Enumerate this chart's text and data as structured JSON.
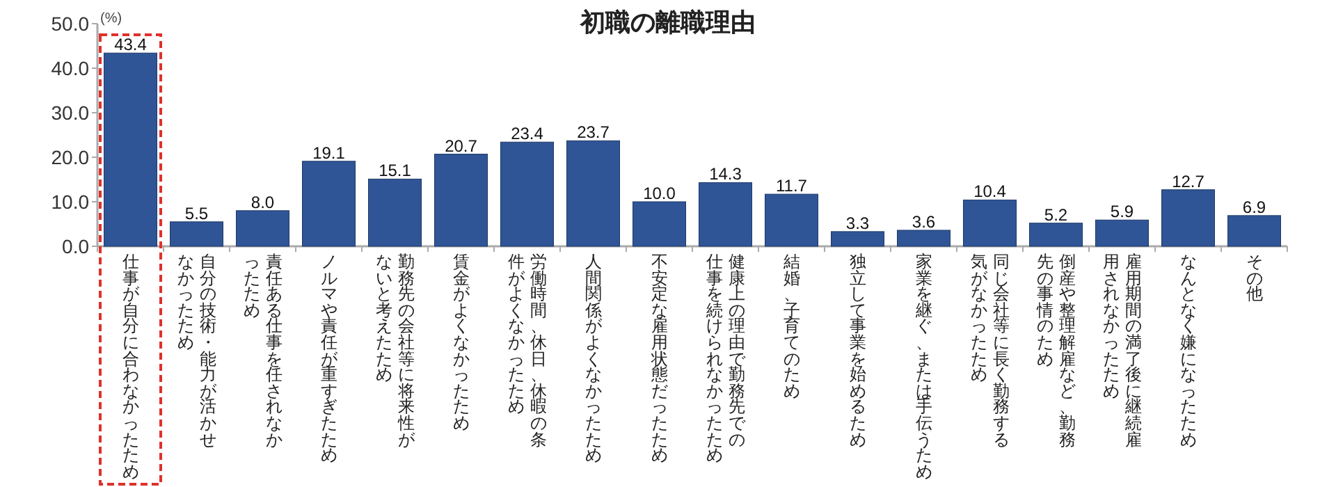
{
  "chart_data": {
    "type": "bar",
    "title": "初職の離職理由",
    "ylabel": "(%)",
    "categories": [
      "仕事が自分に合わなかったため",
      "自分の技術・能力が活かせなかったため",
      "責任ある仕事を任されなかったため",
      "ノルマや責任が重すぎたため",
      "勤務先の会社等に将来性がないと考えたため",
      "賃金がよくなかったため",
      "労働時間、休日、休暇の条件がよくなかったため",
      "人間関係がよくなかったため",
      "不安定な雇用状態だったため",
      "健康上の理由で勤務先での仕事を続けられなかったため",
      "結婚、子育てのため",
      "独立して事業を始めるため",
      "家業を継ぐ、または手伝うため",
      "同じ会社等に長く勤務する気がなかったため",
      "倒産や整理解雇など、勤務先の事情のため",
      "雇用期間の満了後に継続雇用されなかったため",
      "なんとなく嫌になったため",
      "その他"
    ],
    "values": [
      43.4,
      5.5,
      8.0,
      19.1,
      15.1,
      20.7,
      23.4,
      23.7,
      10.0,
      14.3,
      11.7,
      3.3,
      3.6,
      10.4,
      5.2,
      5.9,
      12.7,
      6.9
    ],
    "value_labels": [
      "43.4",
      "5.5",
      "8.0",
      "19.1",
      "15.1",
      "20.7",
      "23.4",
      "23.7",
      "10.0",
      "14.3",
      "11.7",
      "3.3",
      "3.6",
      "10.4",
      "5.2",
      "5.9",
      "12.7",
      "6.9"
    ],
    "color": "#2f5597",
    "ylim": [
      0,
      50
    ],
    "yticks": [
      {
        "value": 0,
        "label": "0.0"
      },
      {
        "value": 10,
        "label": "10.0"
      },
      {
        "value": 20,
        "label": "20.0"
      },
      {
        "value": 30,
        "label": "30.0"
      },
      {
        "value": 40,
        "label": "40.0"
      },
      {
        "value": 50,
        "label": "50.0"
      }
    ],
    "grid": false
  }
}
